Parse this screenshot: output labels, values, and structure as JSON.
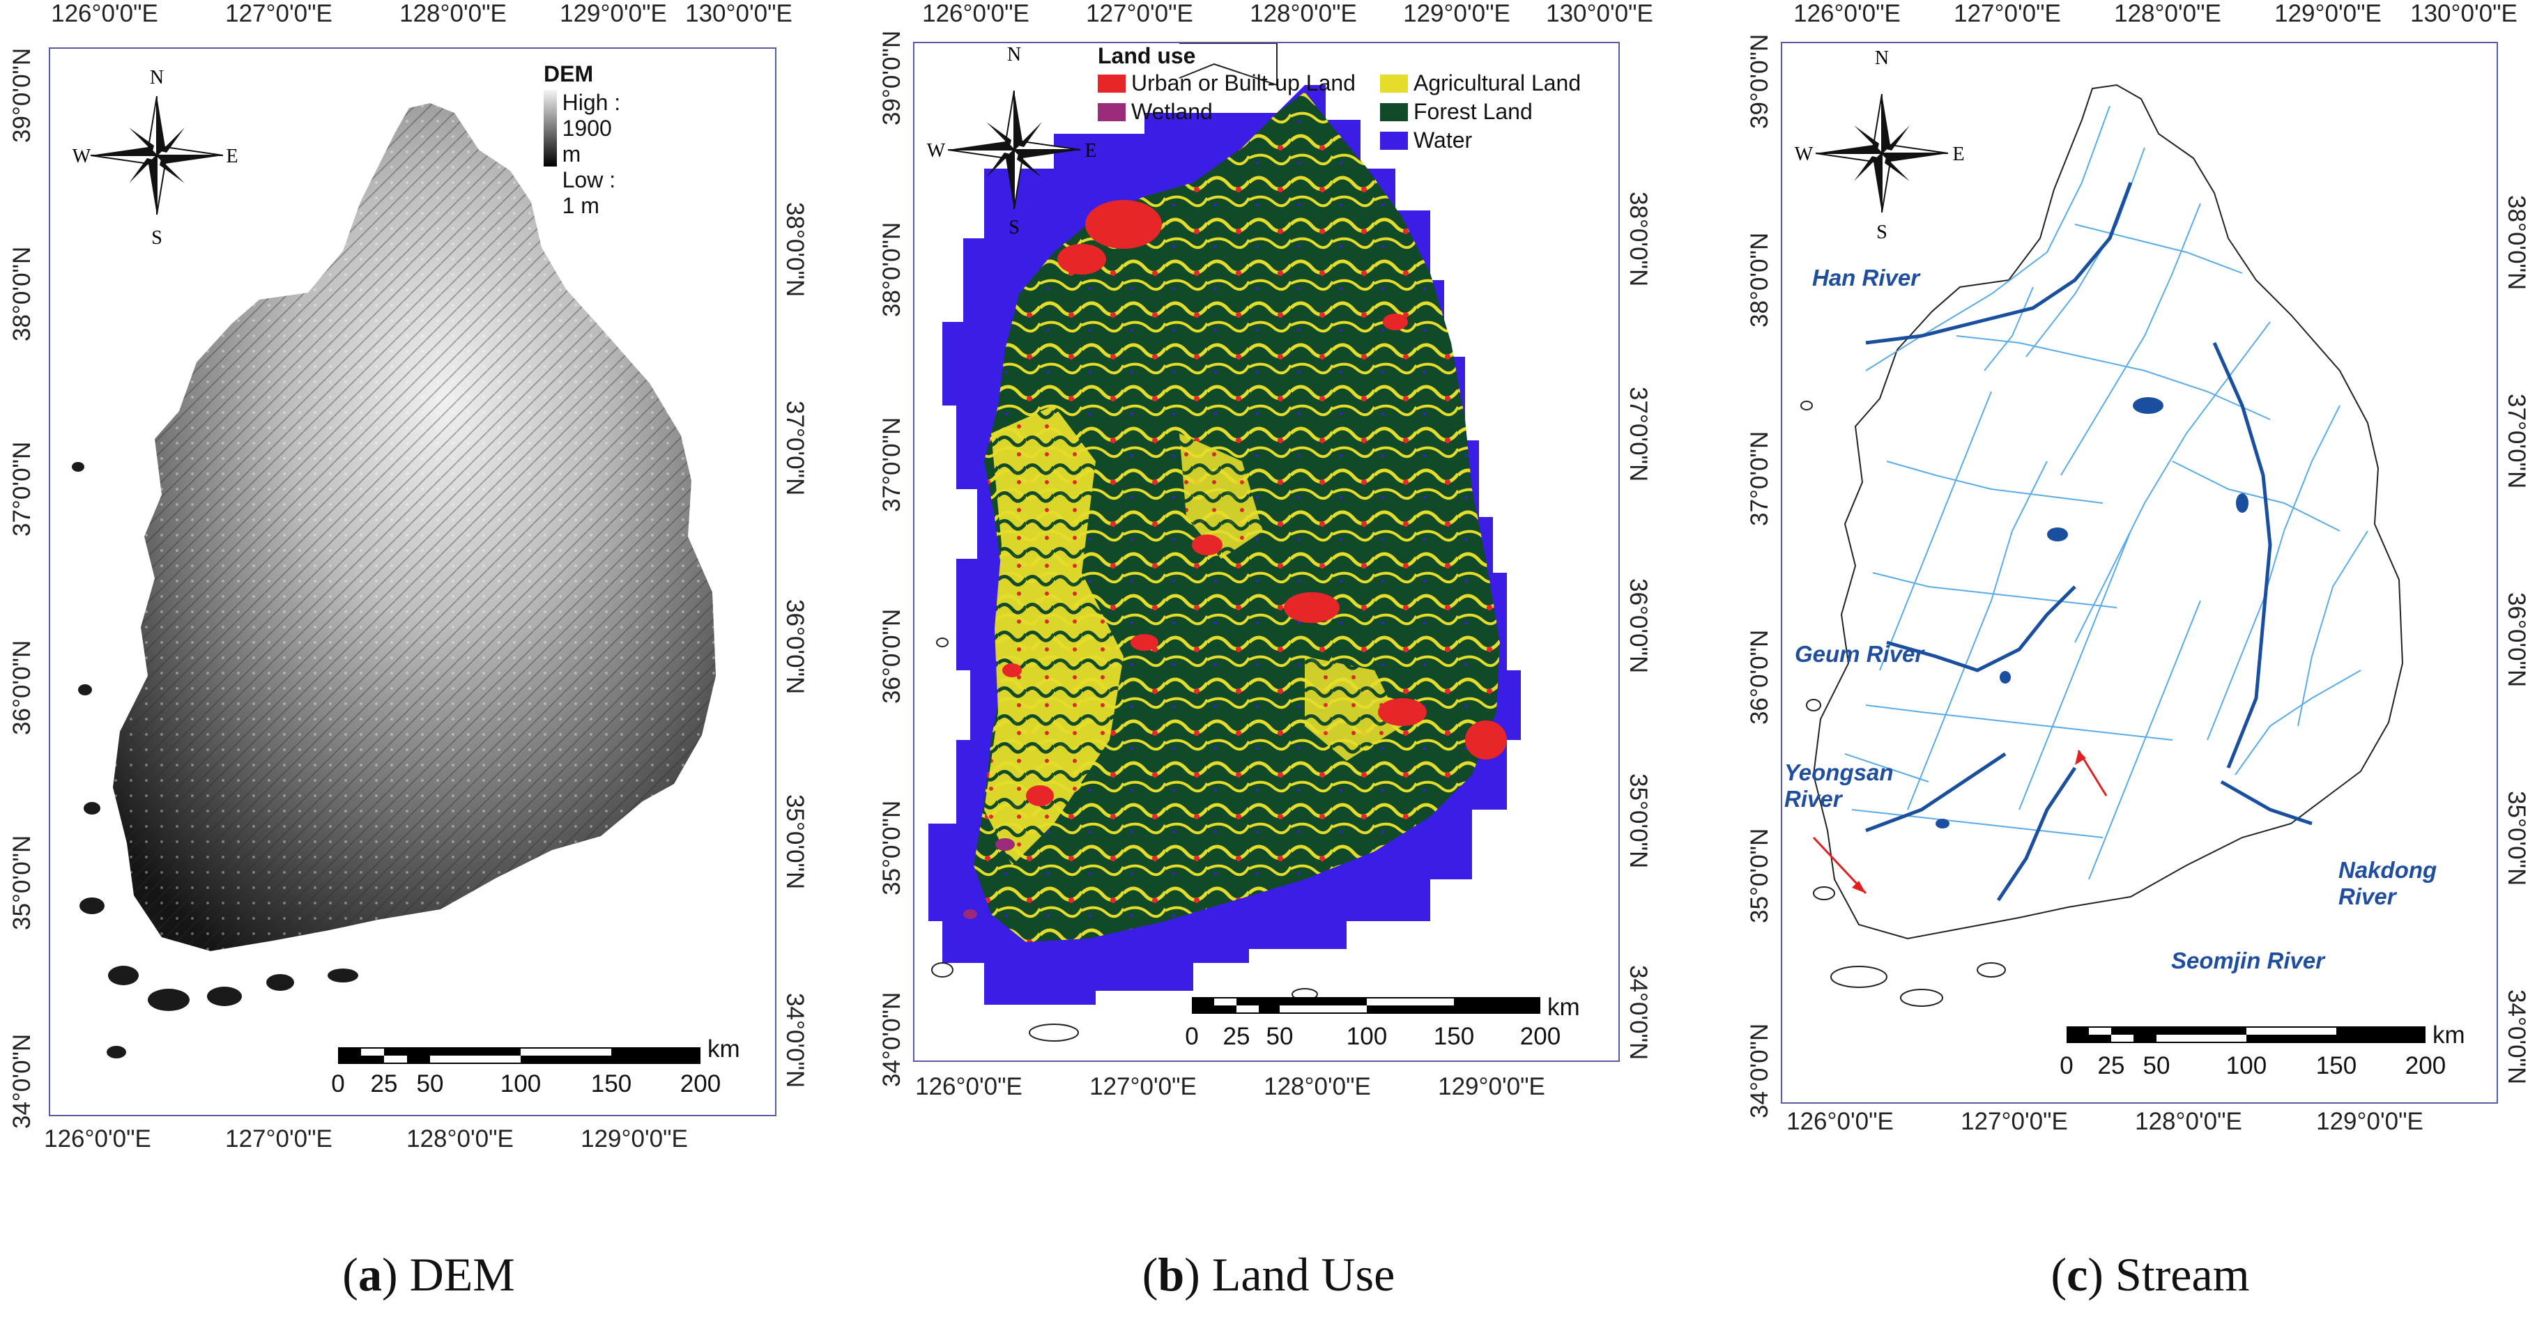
{
  "panels": [
    {
      "id": "dem",
      "caption_letter": "a",
      "caption_text": "DEM",
      "top_ticks": [
        "126°0'0\"E",
        "127°0'0\"E",
        "128°0'0\"E",
        "129°0'0\"E",
        "130°0'0\"E"
      ],
      "bottom_ticks": [
        "126°0'0\"E",
        "127°0'0\"E",
        "128°0'0\"E",
        "129°0'0\"E"
      ],
      "left_ticks": [
        "39°0'0\"N",
        "38°0'0\"N",
        "37°0'0\"N",
        "36°0'0\"N",
        "35°0'0\"N",
        "34°0'0\"N"
      ],
      "right_ticks": [
        "38°0'0\"N",
        "37°0'0\"N",
        "36°0'0\"N",
        "35°0'0\"N",
        "34°0'0\"N"
      ],
      "legend": {
        "title": "DEM",
        "high": "High : 1900 m",
        "low": "Low : 1 m"
      }
    },
    {
      "id": "landuse",
      "caption_letter": "b",
      "caption_text": "Land Use",
      "top_ticks": [
        "126°0'0\"E",
        "127°0'0\"E",
        "128°0'0\"E",
        "129°0'0\"E",
        "130°0'0\"E"
      ],
      "bottom_ticks": [
        "126°0'0\"E",
        "127°0'0\"E",
        "128°0'0\"E",
        "129°0'0\"E"
      ],
      "left_ticks": [
        "39°0'0\"N",
        "38°0'0\"N",
        "37°0'0\"N",
        "36°0'0\"N",
        "35°0'0\"N",
        "34°0'0\"N"
      ],
      "right_ticks": [
        "38°0'0\"N",
        "37°0'0\"N",
        "36°0'0\"N",
        "35°0'0\"N",
        "34°0'0\"N"
      ],
      "legend": {
        "title": "Land use",
        "items": [
          {
            "label": "Urban or Built-up Land",
            "color": "#e8262a"
          },
          {
            "label": "Agricultural Land",
            "color": "#e5dd2a"
          },
          {
            "label": "Wetland",
            "color": "#9b2a7a"
          },
          {
            "label": "Forest Land",
            "color": "#114a28"
          },
          {
            "label": "Water",
            "color": "#3a1ee6"
          }
        ]
      }
    },
    {
      "id": "stream",
      "caption_letter": "c",
      "caption_text": "Stream",
      "top_ticks": [
        "126°0'0\"E",
        "127°0'0\"E",
        "128°0'0\"E",
        "129°0'0\"E",
        "130°0'0\"E"
      ],
      "bottom_ticks": [
        "126°0'0\"E",
        "127°0'0\"E",
        "128°0'0\"E",
        "129°0'0\"E"
      ],
      "left_ticks": [
        "39°0'0\"N",
        "38°0'0\"N",
        "37°0'0\"N",
        "36°0'0\"N",
        "35°0'0\"N",
        "34°0'0\"N"
      ],
      "right_ticks": [
        "38°0'0\"N",
        "37°0'0\"N",
        "36°0'0\"N",
        "35°0'0\"N",
        "34°0'0\"N"
      ],
      "rivers": {
        "han": "Han River",
        "geum": "Geum River",
        "yeongsan_1": "Yeongsan",
        "yeongsan_2": "River",
        "seomjin": "Seomjin River",
        "nakdong_1": "Nakdong",
        "nakdong_2": "River"
      }
    }
  ],
  "north_arrow": {
    "n": "N",
    "s": "S",
    "e": "E",
    "w": "W"
  },
  "scale_bar": {
    "unit": "km",
    "labels": [
      "0",
      "25",
      "50",
      "100",
      "150",
      "200"
    ]
  },
  "caption_parts": {
    "open": "(",
    "close": ")"
  },
  "colors": {
    "frame": "#5a5aa8",
    "dem_high": "#f4f4f4",
    "dem_low": "#000000",
    "urban": "#e8262a",
    "agricultural": "#e5dd2a",
    "wetland": "#9b2a7a",
    "forest": "#114a28",
    "water": "#3a1ee6",
    "stream": "#49a3e8",
    "main_river": "#1a4fa0",
    "river_label": "#1f4e9e",
    "arrow": "#e02020"
  }
}
